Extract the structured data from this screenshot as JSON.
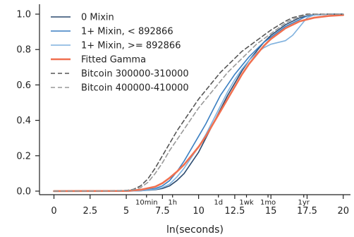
{
  "chart_data": {
    "type": "line",
    "xlabel": "ln(seconds)",
    "ylabel": "",
    "title": "",
    "xlim": [
      -1,
      20.5
    ],
    "ylim": [
      -0.02,
      1.04
    ],
    "xticks": [
      0,
      2.5,
      5,
      7.5,
      10,
      12.5,
      15,
      17.5,
      20
    ],
    "xtick_labels": [
      "0",
      "2.5",
      "5",
      "7.5",
      "10",
      "12.5",
      "15",
      "17.5",
      "20"
    ],
    "yticks": [
      0.0,
      0.2,
      0.4,
      0.6,
      0.8,
      1.0
    ],
    "ytick_labels": [
      "0.0",
      "0.2",
      "0.4",
      "0.6",
      "0.8",
      "1.0"
    ],
    "time_markers": [
      {
        "label": "10min",
        "x": 6.4
      },
      {
        "label": "1h",
        "x": 8.2
      },
      {
        "label": "1d",
        "x": 11.37
      },
      {
        "label": "1wk",
        "x": 13.31
      },
      {
        "label": "1mo",
        "x": 14.8
      },
      {
        "label": "1yr",
        "x": 17.27
      }
    ],
    "legend_position": "top-left",
    "grid": false,
    "series": [
      {
        "name": "0 Mixin",
        "color": "#2b4a6f",
        "dash": "solid",
        "x": [
          0,
          5,
          6,
          7,
          7.5,
          8,
          8.5,
          9,
          9.5,
          10,
          10.5,
          11,
          11.5,
          12,
          12.5,
          13,
          13.5,
          14,
          14.5,
          15,
          15.5,
          16,
          16.5,
          17,
          17.5,
          18,
          19,
          20
        ],
        "y": [
          0.0,
          0.0,
          0.002,
          0.008,
          0.015,
          0.03,
          0.06,
          0.1,
          0.16,
          0.22,
          0.3,
          0.38,
          0.46,
          0.54,
          0.61,
          0.68,
          0.74,
          0.79,
          0.84,
          0.88,
          0.91,
          0.94,
          0.96,
          0.98,
          0.99,
          0.995,
          1.0,
          1.0
        ]
      },
      {
        "name": "1+ Mixin, < 892866",
        "color": "#3a7fc2",
        "dash": "solid",
        "x": [
          0,
          5,
          6,
          7,
          7.5,
          8,
          8.5,
          9,
          9.5,
          10,
          10.5,
          11,
          11.5,
          12,
          12.5,
          13,
          13.5,
          14,
          14.5,
          15,
          15.5,
          16,
          16.5,
          17,
          17.5,
          18,
          19,
          20
        ],
        "y": [
          0.0,
          0.0,
          0.003,
          0.015,
          0.03,
          0.06,
          0.11,
          0.17,
          0.24,
          0.31,
          0.38,
          0.46,
          0.54,
          0.6,
          0.66,
          0.71,
          0.76,
          0.8,
          0.84,
          0.87,
          0.9,
          0.93,
          0.95,
          0.97,
          0.99,
          0.995,
          1.0,
          1.0
        ]
      },
      {
        "name": "1+ Mixin, >= 892866",
        "color": "#7fb1de",
        "dash": "solid",
        "x": [
          0,
          5,
          6,
          7,
          7.5,
          8,
          8.5,
          9,
          9.5,
          10,
          10.5,
          11,
          11.5,
          12,
          12.5,
          13,
          13.5,
          14,
          14.5,
          15,
          15.5,
          16,
          16.5,
          17,
          17.5,
          18,
          19,
          20
        ],
        "y": [
          0.0,
          0.0,
          0.002,
          0.01,
          0.02,
          0.04,
          0.08,
          0.13,
          0.19,
          0.25,
          0.32,
          0.4,
          0.48,
          0.56,
          0.63,
          0.69,
          0.74,
          0.78,
          0.81,
          0.83,
          0.84,
          0.85,
          0.88,
          0.93,
          0.98,
          0.995,
          1.0,
          1.0
        ]
      },
      {
        "name": "Fitted Gamma",
        "color": "#f07050",
        "dash": "solid",
        "x": [
          0,
          5,
          6,
          7,
          7.5,
          8,
          8.5,
          9,
          9.5,
          10,
          10.5,
          11,
          11.5,
          12,
          12.5,
          13,
          13.5,
          14,
          14.5,
          15,
          15.5,
          16,
          16.5,
          17,
          17.5,
          18,
          19,
          20
        ],
        "y": [
          0.0,
          0.001,
          0.008,
          0.025,
          0.045,
          0.075,
          0.11,
          0.15,
          0.2,
          0.25,
          0.31,
          0.38,
          0.45,
          0.52,
          0.59,
          0.66,
          0.72,
          0.77,
          0.82,
          0.86,
          0.89,
          0.92,
          0.94,
          0.96,
          0.97,
          0.98,
          0.99,
          0.995
        ]
      },
      {
        "name": "Bitcoin 300000-310000",
        "color": "#555555",
        "dash": "dashed",
        "x": [
          0,
          4,
          5,
          5.5,
          6,
          6.5,
          7,
          7.5,
          8,
          8.5,
          9,
          9.5,
          10,
          10.5,
          11,
          11.5,
          12,
          12.5,
          13,
          13.5,
          14,
          14.5,
          15,
          15.5,
          16,
          16.5,
          17,
          17.5,
          18,
          19,
          20
        ],
        "y": [
          0.0,
          0.001,
          0.004,
          0.01,
          0.03,
          0.07,
          0.13,
          0.2,
          0.27,
          0.34,
          0.4,
          0.46,
          0.52,
          0.57,
          0.62,
          0.67,
          0.71,
          0.75,
          0.79,
          0.82,
          0.85,
          0.88,
          0.91,
          0.935,
          0.96,
          0.98,
          0.99,
          1.0,
          1.0,
          1.0,
          1.0
        ]
      },
      {
        "name": "Bitcoin 400000-410000",
        "color": "#999999",
        "dash": "dashed",
        "x": [
          0,
          4,
          5,
          5.5,
          6,
          6.5,
          7,
          7.5,
          8,
          8.5,
          9,
          9.5,
          10,
          10.5,
          11,
          11.5,
          12,
          12.5,
          13,
          13.5,
          14,
          14.5,
          15,
          15.5,
          16,
          16.5,
          17,
          17.5,
          18,
          19,
          20
        ],
        "y": [
          0.0,
          0.001,
          0.003,
          0.008,
          0.02,
          0.05,
          0.1,
          0.16,
          0.23,
          0.29,
          0.35,
          0.41,
          0.47,
          0.52,
          0.57,
          0.62,
          0.67,
          0.71,
          0.75,
          0.79,
          0.83,
          0.86,
          0.89,
          0.92,
          0.95,
          0.97,
          0.985,
          0.995,
          1.0,
          1.0,
          1.0
        ]
      }
    ]
  }
}
